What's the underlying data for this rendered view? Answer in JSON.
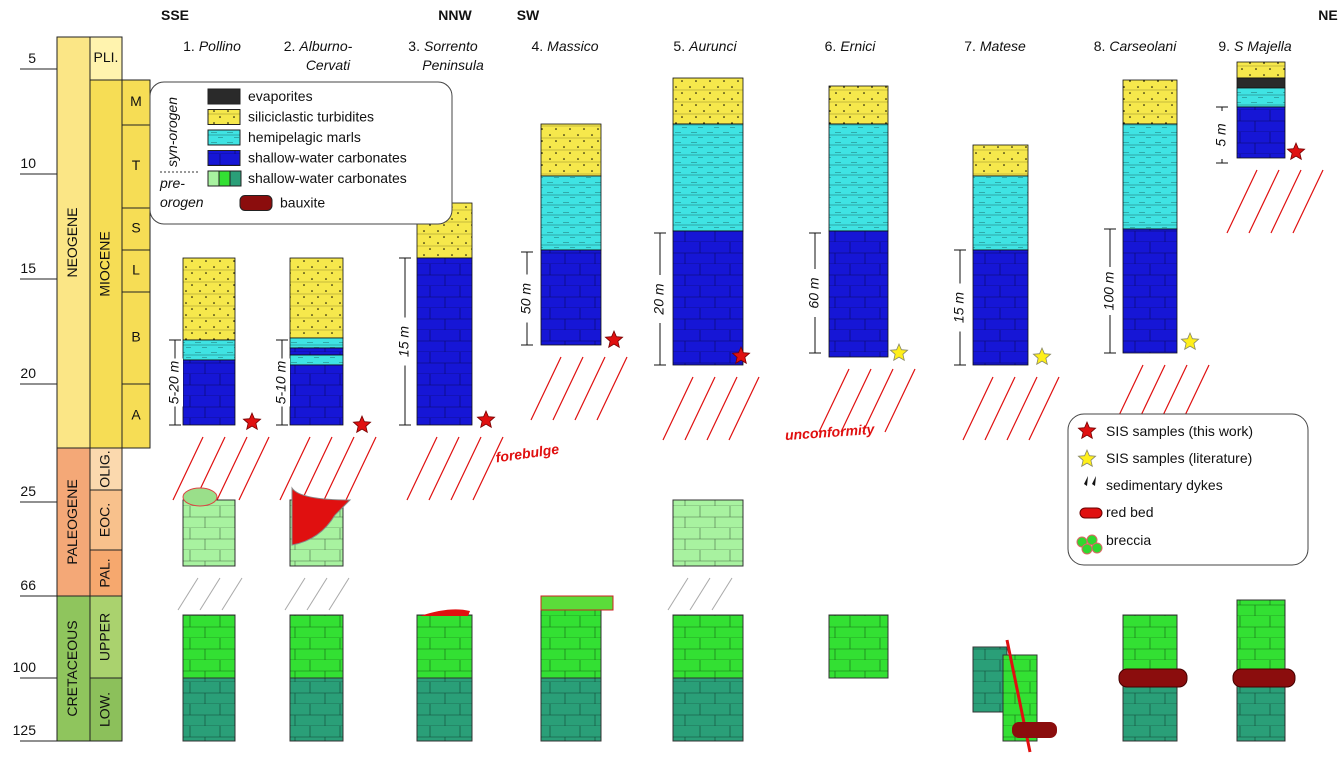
{
  "directions": {
    "sse": "SSE",
    "nnw": "NNW",
    "sw": "SW",
    "ne": "NE"
  },
  "age_ticks": [
    "5",
    "10",
    "15",
    "20",
    "25",
    "66",
    "100",
    "125"
  ],
  "periods": [
    "NEOGENE",
    "PALEOGENE",
    "CRETACEOUS"
  ],
  "epochs": [
    "PLI.",
    "MIOCENE",
    "OLIG.",
    "EOC.",
    "PAL.",
    "UPPER",
    "LOW."
  ],
  "stages": [
    "M",
    "T",
    "S",
    "L",
    "B",
    "A"
  ],
  "sections": [
    {
      "number": "1.",
      "name": [
        "Pollino"
      ],
      "scale": "5-20 m"
    },
    {
      "number": "2.",
      "name": [
        "Alburno-",
        "Cervati"
      ],
      "scale": "5-10 m"
    },
    {
      "number": "3.",
      "name": [
        "Sorrento",
        "Peninsula"
      ],
      "scale": "15 m"
    },
    {
      "number": "4.",
      "name": [
        "Massico"
      ],
      "scale": "50 m"
    },
    {
      "number": "5.",
      "name": [
        "Aurunci"
      ],
      "scale": "20 m"
    },
    {
      "number": "6.",
      "name": [
        "Ernici"
      ],
      "scale": "60 m"
    },
    {
      "number": "7.",
      "name": [
        "Matese"
      ],
      "scale": "15 m"
    },
    {
      "number": "8.",
      "name": [
        "Carseolani"
      ],
      "scale": "100 m"
    },
    {
      "number": "9.",
      "name": [
        "S Majella"
      ],
      "scale": "5 m"
    }
  ],
  "lithology_legend": {
    "syn_orogen": "syn-orogen",
    "pre_orogen": [
      "pre-",
      "orogen"
    ],
    "items": [
      "evaporites",
      "siliciclastic turbidites",
      "hemipelagic marls",
      "shallow-water carbonates",
      "shallow-water carbonates",
      "bauxite"
    ]
  },
  "symbol_legend": {
    "items": [
      "SIS samples (this work)",
      "SIS samples (literature)",
      "sedimentary dykes",
      "red bed",
      "breccia"
    ]
  },
  "annotation": [
    "forebulge",
    "unconformity"
  ]
}
